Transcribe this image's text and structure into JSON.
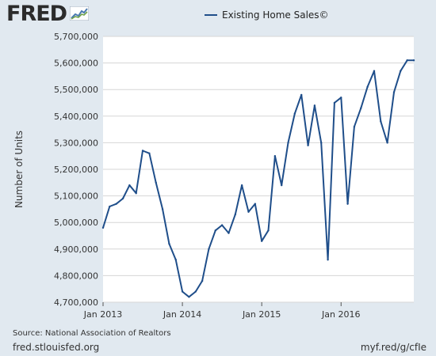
{
  "header": {
    "logo_text": "FRED",
    "logo_icon": "line-chart-icon"
  },
  "legend": {
    "label": "Existing Home Sales©"
  },
  "footer": {
    "source": "Source: National Association of Realtors",
    "site": "fred.stlouisfed.org",
    "shortlink": "myf.red/g/cfIe"
  },
  "colors": {
    "background": "#e1e9f0",
    "plot_background": "#ffffff",
    "series": "#1f4e8a",
    "grid": "#d6d6d6"
  },
  "chart_data": {
    "type": "line",
    "title": "",
    "xlabel": "",
    "ylabel": "Number of Units",
    "ylim": [
      4700000,
      5700000
    ],
    "y_ticks": [
      4700000,
      4800000,
      4900000,
      5000000,
      5100000,
      5200000,
      5300000,
      5400000,
      5500000,
      5600000,
      5700000
    ],
    "y_tick_labels": [
      "4,700,000",
      "4,800,000",
      "4,900,000",
      "5,000,000",
      "5,100,000",
      "5,200,000",
      "5,300,000",
      "5,400,000",
      "5,500,000",
      "5,600,000",
      "5,700,000"
    ],
    "x_ticks": [
      "Jan 2013",
      "Jan 2014",
      "Jan 2015",
      "Jan 2016"
    ],
    "x_tick_positions": [
      "2013-01",
      "2014-01",
      "2015-01",
      "2016-01"
    ],
    "x_range": [
      "2013-01",
      "2016-12"
    ],
    "grid": true,
    "legend_position": "top",
    "series": [
      {
        "name": "Existing Home Sales©",
        "color": "#1f4e8a",
        "x": [
          "2013-01",
          "2013-02",
          "2013-03",
          "2013-04",
          "2013-05",
          "2013-06",
          "2013-07",
          "2013-08",
          "2013-09",
          "2013-10",
          "2013-11",
          "2013-12",
          "2014-01",
          "2014-02",
          "2014-03",
          "2014-04",
          "2014-05",
          "2014-06",
          "2014-07",
          "2014-08",
          "2014-09",
          "2014-10",
          "2014-11",
          "2014-12",
          "2015-01",
          "2015-02",
          "2015-03",
          "2015-04",
          "2015-05",
          "2015-06",
          "2015-07",
          "2015-08",
          "2015-09",
          "2015-10",
          "2015-11",
          "2015-12",
          "2016-01",
          "2016-02",
          "2016-03",
          "2016-04",
          "2016-05",
          "2016-06",
          "2016-07",
          "2016-08",
          "2016-09",
          "2016-10",
          "2016-11",
          "2016-12"
        ],
        "values": [
          4980000,
          5060000,
          5070000,
          5090000,
          5140000,
          5110000,
          5270000,
          5260000,
          5150000,
          5050000,
          4920000,
          4860000,
          4740000,
          4720000,
          4740000,
          4780000,
          4900000,
          4970000,
          4990000,
          4960000,
          5030000,
          5140000,
          5040000,
          5070000,
          4930000,
          4970000,
          5250000,
          5140000,
          5300000,
          5410000,
          5480000,
          5290000,
          5440000,
          5300000,
          4860000,
          5450000,
          5470000,
          5070000,
          5360000,
          5430000,
          5510000,
          5570000,
          5380000,
          5300000,
          5490000,
          5570000,
          5610000,
          5610000
        ]
      }
    ]
  }
}
